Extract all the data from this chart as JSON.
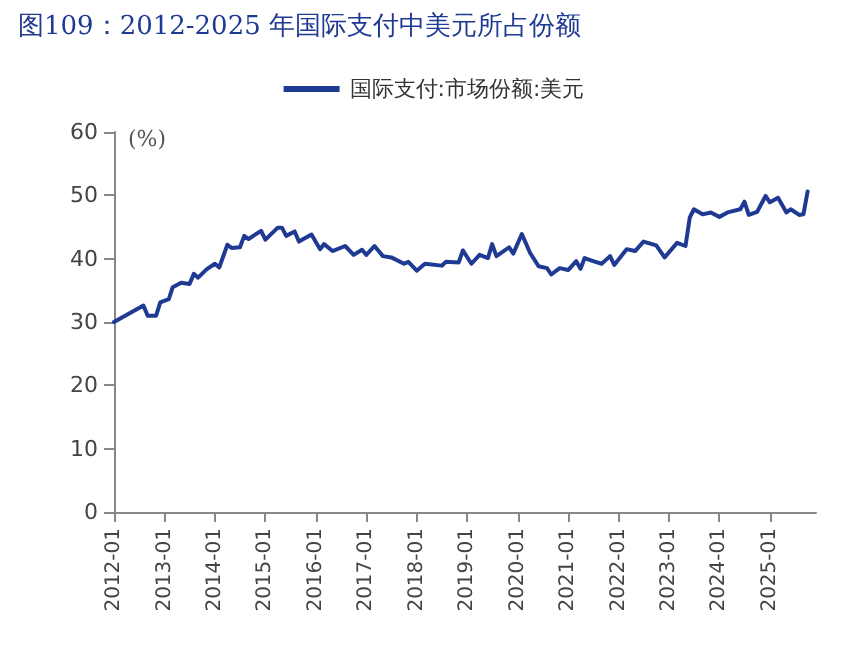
{
  "chart_data": {
    "type": "line",
    "title": "图109：2012-2025 年国际支付中美元所占份额",
    "annotations": [
      "(%)"
    ],
    "legend": "top",
    "x": [
      "2012-01",
      "2012-08",
      "2012-09",
      "2012-11",
      "2012-12",
      "2013-02",
      "2013-03",
      "2013-05",
      "2013-07",
      "2013-08",
      "2013-09",
      "2013-11",
      "2014-01",
      "2014-02",
      "2014-04",
      "2014-05",
      "2014-07",
      "2014-08",
      "2014-09",
      "2014-12",
      "2015-01",
      "2015-04",
      "2015-05",
      "2015-06",
      "2015-08",
      "2015-09",
      "2015-12",
      "2016-02",
      "2016-03",
      "2016-05",
      "2016-08",
      "2016-10",
      "2016-12",
      "2017-01",
      "2017-03",
      "2017-05",
      "2017-07",
      "2017-10",
      "2017-11",
      "2018-01",
      "2018-03",
      "2018-07",
      "2018-08",
      "2018-11",
      "2018-12",
      "2019-02",
      "2019-04",
      "2019-06",
      "2019-07",
      "2019-08",
      "2019-11",
      "2019-12",
      "2020-02",
      "2020-04",
      "2020-06",
      "2020-08",
      "2020-09",
      "2020-11",
      "2021-01",
      "2021-03",
      "2021-04",
      "2021-05",
      "2021-07",
      "2021-09",
      "2021-11",
      "2021-12",
      "2022-03",
      "2022-05",
      "2022-07",
      "2022-10",
      "2022-12",
      "2023-03",
      "2023-05",
      "2023-06",
      "2023-07",
      "2023-09",
      "2023-11",
      "2024-01",
      "2024-03",
      "2024-06",
      "2024-07",
      "2024-08",
      "2024-10",
      "2024-12",
      "2025-01",
      "2025-03",
      "2025-05",
      "2025-06",
      "2025-08",
      "2025-09",
      "2025-10"
    ],
    "series": [
      {
        "name": "国际支付:市场份额:美元",
        "color": "#1f3a93",
        "values": [
          30.0,
          32.6,
          31.0,
          31.0,
          33.1,
          33.6,
          35.5,
          36.2,
          36.0,
          37.6,
          37.0,
          38.3,
          39.2,
          38.6,
          42.2,
          41.7,
          41.8,
          43.6,
          43.1,
          44.4,
          43.0,
          44.9,
          44.9,
          43.6,
          44.3,
          42.7,
          43.8,
          41.5,
          42.3,
          41.2,
          42.0,
          40.6,
          41.4,
          40.6,
          42.0,
          40.4,
          40.2,
          39.2,
          39.5,
          38.1,
          39.2,
          38.9,
          39.5,
          39.4,
          41.3,
          39.2,
          40.6,
          40.1,
          42.3,
          40.4,
          41.8,
          40.8,
          43.9,
          40.9,
          38.8,
          38.5,
          37.5,
          38.5,
          38.2,
          39.6,
          38.4,
          40.1,
          39.6,
          39.2,
          40.4,
          39.0,
          41.5,
          41.2,
          42.7,
          42.1,
          40.2,
          42.5,
          42.0,
          46.5,
          47.8,
          47.0,
          47.3,
          46.6,
          47.3,
          47.8,
          49.0,
          46.9,
          47.4,
          49.9,
          48.9,
          49.6,
          47.3,
          47.8,
          46.9,
          47.0,
          50.6
        ]
      }
    ],
    "xlim": [
      "2012-01",
      "2025-12"
    ],
    "xticks": [
      "2012-01",
      "2013-01",
      "2014-01",
      "2015-01",
      "2016-01",
      "2017-01",
      "2018-01",
      "2019-01",
      "2020-01",
      "2021-01",
      "2022-01",
      "2023-01",
      "2024-01",
      "2025-01"
    ],
    "ylim": [
      0,
      60
    ],
    "yticks": [
      0,
      10,
      20,
      30,
      40,
      50,
      60
    ],
    "grid": false,
    "marker": "none",
    "line_style": "solid"
  }
}
